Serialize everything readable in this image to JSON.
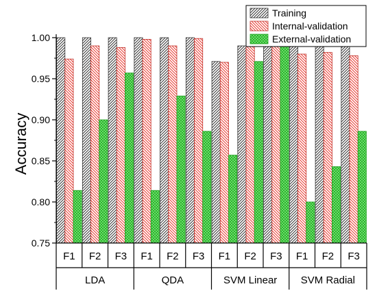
{
  "chart_data": {
    "type": "bar",
    "ylabel": "Accuracy",
    "ylim": [
      0.75,
      1.0
    ],
    "yticks": [
      "0.75",
      "0.80",
      "0.85",
      "0.90",
      "0.95",
      "1.00"
    ],
    "groups": [
      {
        "label": "LDA",
        "categories": [
          "F1",
          "F2",
          "F3"
        ]
      },
      {
        "label": "QDA",
        "categories": [
          "F1",
          "F2",
          "F3"
        ]
      },
      {
        "label": "SVM Linear",
        "categories": [
          "F1",
          "F2",
          "F3"
        ]
      },
      {
        "label": "SVM Radial",
        "categories": [
          "F1",
          "F2",
          "F3"
        ]
      }
    ],
    "series": [
      {
        "name": "Training",
        "color": "#555555",
        "pattern": "black-diagonal",
        "values": [
          1.0,
          1.0,
          1.0,
          1.0,
          1.0,
          1.0,
          0.971,
          0.99,
          0.99,
          1.0,
          1.0,
          0.99
        ]
      },
      {
        "name": "Internal-validation",
        "color": "#e8382e",
        "pattern": "red-diagonal",
        "values": [
          0.974,
          0.99,
          0.988,
          0.998,
          0.99,
          0.999,
          0.97,
          0.99,
          0.99,
          0.98,
          0.982,
          0.978
        ]
      },
      {
        "name": "External-validation",
        "color": "#22b822",
        "pattern": "green-crosshatch",
        "values": [
          0.814,
          0.9,
          0.957,
          0.814,
          0.929,
          0.886,
          0.857,
          0.971,
          1.0,
          0.8,
          0.843,
          0.886
        ]
      }
    ],
    "legend_position": "top-right",
    "grid": false
  }
}
